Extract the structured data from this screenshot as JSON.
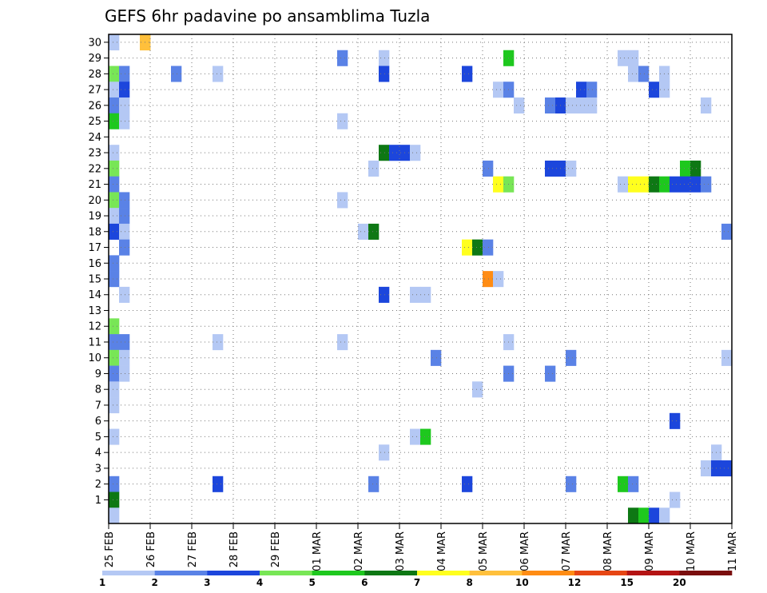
{
  "chart_data": {
    "type": "heatmap",
    "title": "GEFS 6hr padavine po ansamblima Tuzla",
    "xlabel": "",
    "ylabel": "",
    "x_tick_labels": [
      "25 FEB",
      "26 FEB",
      "27 FEB",
      "28 FEB",
      "29 FEB",
      "01 MAR",
      "02 MAR",
      "03 MAR",
      "04 MAR",
      "05 MAR",
      "06 MAR",
      "07 MAR",
      "08 MAR",
      "09 MAR",
      "10 MAR",
      "11 MAR"
    ],
    "y_tick_labels": [
      "1",
      "2",
      "3",
      "4",
      "5",
      "6",
      "7",
      "8",
      "9",
      "10",
      "11",
      "12",
      "13",
      "14",
      "15",
      "16",
      "17",
      "18",
      "19",
      "20",
      "21",
      "22",
      "23",
      "24",
      "25",
      "26",
      "27",
      "28",
      "29",
      "30"
    ],
    "x_unit": "6hr step since 25 FEB",
    "xlim": [
      0,
      60
    ],
    "ylim": [
      0,
      30
    ],
    "grid": true,
    "legend": {
      "placement": "bottom",
      "labels": [
        "1",
        "2",
        "3",
        "4",
        "5",
        "6",
        "7",
        "8",
        "10",
        "12",
        "15",
        "20"
      ],
      "colors": [
        "#b4c8f4",
        "#5a82e6",
        "#1c46dc",
        "#78e656",
        "#1ec81e",
        "#0e7814",
        "#ffff1e",
        "#ffc03c",
        "#ff8c14",
        "#e64614",
        "#b41414",
        "#7a0e0e"
      ]
    },
    "cells": [
      [
        0,
        30,
        0
      ],
      [
        3,
        30,
        7
      ],
      [
        3,
        30,
        7
      ],
      [
        22,
        29,
        1
      ],
      [
        26,
        29,
        0
      ],
      [
        38,
        29,
        4
      ],
      [
        49,
        29,
        0
      ],
      [
        50,
        29,
        0
      ],
      [
        0,
        28,
        3
      ],
      [
        1,
        28,
        1
      ],
      [
        6,
        28,
        1
      ],
      [
        10,
        28,
        0
      ],
      [
        26,
        28,
        2
      ],
      [
        34,
        28,
        2
      ],
      [
        50,
        28,
        0
      ],
      [
        51,
        28,
        1
      ],
      [
        53,
        28,
        0
      ],
      [
        0,
        27,
        0
      ],
      [
        1,
        27,
        2
      ],
      [
        37,
        27,
        0
      ],
      [
        38,
        27,
        1
      ],
      [
        45,
        27,
        2
      ],
      [
        46,
        27,
        1
      ],
      [
        52,
        27,
        2
      ],
      [
        53,
        27,
        0
      ],
      [
        0,
        26,
        1
      ],
      [
        1,
        26,
        0
      ],
      [
        39,
        26,
        0
      ],
      [
        42,
        26,
        1
      ],
      [
        43,
        26,
        2
      ],
      [
        44,
        26,
        0
      ],
      [
        45,
        26,
        0
      ],
      [
        46,
        26,
        0
      ],
      [
        57,
        26,
        0
      ],
      [
        0,
        25,
        4
      ],
      [
        1,
        25,
        0
      ],
      [
        22,
        25,
        0
      ],
      [
        0,
        23,
        0
      ],
      [
        26,
        23,
        5
      ],
      [
        27,
        23,
        2
      ],
      [
        28,
        23,
        2
      ],
      [
        29,
        23,
        0
      ],
      [
        0,
        22,
        3
      ],
      [
        25,
        22,
        0
      ],
      [
        36,
        22,
        1
      ],
      [
        42,
        22,
        2
      ],
      [
        43,
        22,
        2
      ],
      [
        44,
        22,
        0
      ],
      [
        55,
        22,
        4
      ],
      [
        56,
        22,
        5
      ],
      [
        0,
        21,
        1
      ],
      [
        37,
        21,
        6
      ],
      [
        38,
        21,
        3
      ],
      [
        49,
        21,
        0
      ],
      [
        50,
        21,
        6
      ],
      [
        51,
        21,
        6
      ],
      [
        52,
        21,
        5
      ],
      [
        53,
        21,
        4
      ],
      [
        54,
        21,
        2
      ],
      [
        55,
        21,
        2
      ],
      [
        56,
        21,
        2
      ],
      [
        57,
        21,
        1
      ],
      [
        0,
        20,
        3
      ],
      [
        1,
        20,
        1
      ],
      [
        22,
        20,
        0
      ],
      [
        0,
        19,
        0
      ],
      [
        1,
        19,
        1
      ],
      [
        0,
        18,
        2
      ],
      [
        1,
        18,
        0
      ],
      [
        24,
        18,
        0
      ],
      [
        25,
        18,
        5
      ],
      [
        59,
        18,
        1
      ],
      [
        1,
        17,
        1
      ],
      [
        34,
        17,
        6
      ],
      [
        35,
        17,
        5
      ],
      [
        36,
        17,
        1
      ],
      [
        0,
        16,
        1
      ],
      [
        0,
        15,
        1
      ],
      [
        36,
        15,
        8
      ],
      [
        37,
        15,
        0
      ],
      [
        1,
        14,
        0
      ],
      [
        26,
        14,
        2
      ],
      [
        29,
        14,
        0
      ],
      [
        30,
        14,
        0
      ],
      [
        0,
        12,
        3
      ],
      [
        0,
        11,
        1
      ],
      [
        1,
        11,
        1
      ],
      [
        10,
        11,
        0
      ],
      [
        22,
        11,
        0
      ],
      [
        38,
        11,
        0
      ],
      [
        0,
        10,
        3
      ],
      [
        1,
        10,
        0
      ],
      [
        31,
        10,
        1
      ],
      [
        44,
        10,
        1
      ],
      [
        59,
        10,
        0
      ],
      [
        0,
        9,
        1
      ],
      [
        1,
        9,
        0
      ],
      [
        38,
        9,
        1
      ],
      [
        42,
        9,
        1
      ],
      [
        0,
        8,
        0
      ],
      [
        35,
        8,
        0
      ],
      [
        0,
        7,
        0
      ],
      [
        54,
        6,
        2
      ],
      [
        0,
        5,
        0
      ],
      [
        29,
        5,
        0
      ],
      [
        30,
        5,
        4
      ],
      [
        26,
        4,
        0
      ],
      [
        58,
        4,
        0
      ],
      [
        57,
        3,
        0
      ],
      [
        58,
        3,
        2
      ],
      [
        59,
        3,
        2
      ],
      [
        0,
        2,
        1
      ],
      [
        10,
        2,
        2
      ],
      [
        25,
        2,
        1
      ],
      [
        34,
        2,
        2
      ],
      [
        44,
        2,
        1
      ],
      [
        49,
        2,
        4
      ],
      [
        50,
        2,
        1
      ],
      [
        54,
        1,
        0
      ],
      [
        0,
        1,
        5
      ],
      [
        0,
        0,
        0
      ],
      [
        50,
        0,
        5
      ],
      [
        51,
        0,
        4
      ],
      [
        52,
        0,
        2
      ],
      [
        53,
        0,
        0
      ]
    ]
  }
}
